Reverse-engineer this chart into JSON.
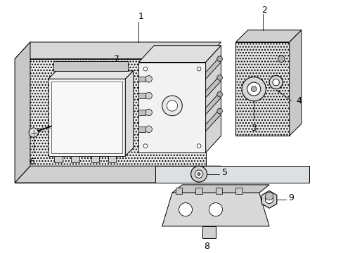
{
  "background_color": "#ffffff",
  "fig_width": 4.89,
  "fig_height": 3.6,
  "dpi": 100,
  "lc": "#000000",
  "panel_fill": "#e8e8e8",
  "panel_hatch": "....",
  "abs_box_fill": "#f0f0f0",
  "ecm_fill": "#f5f5f5",
  "right_panel_fill": "#e0e0e0"
}
